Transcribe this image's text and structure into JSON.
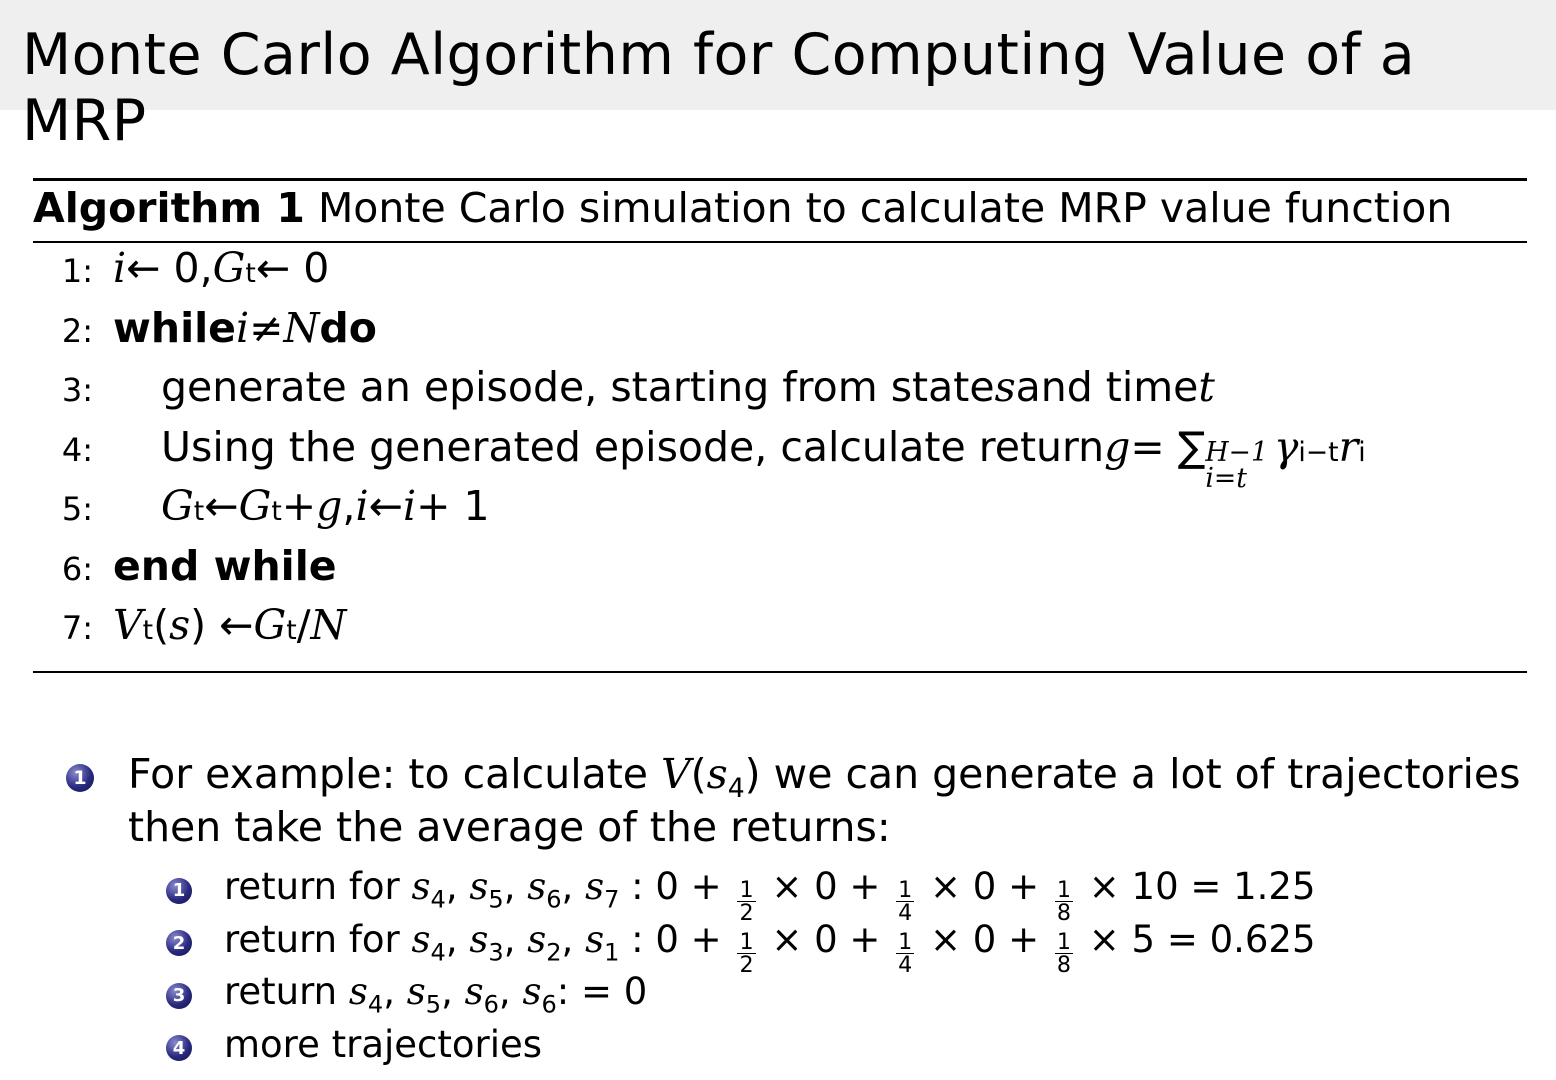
{
  "title": "Monte Carlo Algorithm for Computing Value of a MRP",
  "algorithm": {
    "label": "Algorithm 1",
    "caption": "Monte Carlo simulation to calculate MRP value function",
    "lines": [
      {
        "num": "1:",
        "indent": 0,
        "segs": [
          {
            "t": "i",
            "s": "i"
          },
          {
            "t": " ← 0, ",
            "s": "r"
          },
          {
            "t": "G",
            "s": "i"
          },
          {
            "t": "t",
            "s": "sub"
          },
          {
            "t": " ← 0",
            "s": "r"
          }
        ]
      },
      {
        "num": "2:",
        "indent": 0,
        "segs": [
          {
            "t": "while ",
            "s": "b"
          },
          {
            "t": "i",
            "s": "i"
          },
          {
            "t": " ≠ ",
            "s": "r"
          },
          {
            "t": "N",
            "s": "i"
          },
          {
            "t": " do",
            "s": "b"
          }
        ]
      },
      {
        "num": "3:",
        "indent": 1,
        "segs": [
          {
            "t": "generate an episode, starting from state ",
            "s": "r"
          },
          {
            "t": "s",
            "s": "i"
          },
          {
            "t": " and time ",
            "s": "r"
          },
          {
            "t": "t",
            "s": "i"
          }
        ]
      },
      {
        "num": "4:",
        "indent": 1,
        "segs": [
          {
            "t": "Using the generated episode, calculate return ",
            "s": "r"
          },
          {
            "t": "g",
            "s": "i"
          },
          {
            "t": " = ∑",
            "s": "r"
          },
          {
            "t": "lim",
            "s": "lim",
            "sup": "H−1",
            "sub": "i=t"
          },
          {
            "t": "γ",
            "s": "i"
          },
          {
            "t": "i−t",
            "s": "sup"
          },
          {
            "t": "r",
            "s": "i"
          },
          {
            "t": "i",
            "s": "sub"
          }
        ]
      },
      {
        "num": "5:",
        "indent": 1,
        "segs": [
          {
            "t": "G",
            "s": "i"
          },
          {
            "t": "t",
            "s": "sub"
          },
          {
            "t": " ← ",
            "s": "r"
          },
          {
            "t": "G",
            "s": "i"
          },
          {
            "t": "t",
            "s": "sub"
          },
          {
            "t": " + ",
            "s": "r"
          },
          {
            "t": "g",
            "s": "i"
          },
          {
            "t": ", ",
            "s": "r"
          },
          {
            "t": "i",
            "s": "i"
          },
          {
            "t": " ← ",
            "s": "r"
          },
          {
            "t": "i",
            "s": "i"
          },
          {
            "t": " + 1",
            "s": "r"
          }
        ]
      },
      {
        "num": "6:",
        "indent": 0,
        "segs": [
          {
            "t": "end while",
            "s": "b"
          }
        ]
      },
      {
        "num": "7:",
        "indent": 0,
        "segs": [
          {
            "t": "V",
            "s": "i"
          },
          {
            "t": "t",
            "s": "sub"
          },
          {
            "t": "(",
            "s": "r"
          },
          {
            "t": "s",
            "s": "i"
          },
          {
            "t": ") ← ",
            "s": "r"
          },
          {
            "t": "G",
            "s": "i"
          },
          {
            "t": "t",
            "s": "sub"
          },
          {
            "t": "/",
            "s": "r"
          },
          {
            "t": "N",
            "s": "i"
          }
        ]
      }
    ]
  },
  "example": {
    "marker": "1",
    "line1": [
      {
        "t": "For example: to calculate ",
        "s": "r"
      },
      {
        "t": "V",
        "s": "i"
      },
      {
        "t": "(",
        "s": "r"
      },
      {
        "t": "s",
        "s": "i"
      },
      {
        "t": "4",
        "s": "sub"
      },
      {
        "t": ") we can generate a lot of trajectories",
        "s": "r"
      }
    ],
    "line2": "then take the average of the returns:",
    "items": [
      {
        "marker": "1",
        "segs": [
          {
            "t": "return for ",
            "s": "r"
          },
          {
            "t": "s",
            "s": "i"
          },
          {
            "t": "4",
            "s": "sub"
          },
          {
            "t": ", ",
            "s": "r"
          },
          {
            "t": "s",
            "s": "i"
          },
          {
            "t": "5",
            "s": "sub"
          },
          {
            "t": ", ",
            "s": "r"
          },
          {
            "t": "s",
            "s": "i"
          },
          {
            "t": "6",
            "s": "sub"
          },
          {
            "t": ", ",
            "s": "r"
          },
          {
            "t": "s",
            "s": "i"
          },
          {
            "t": "7",
            "s": "sub"
          },
          {
            "t": " : 0 + ",
            "s": "r"
          },
          {
            "s": "frac",
            "num": "1",
            "den": "2"
          },
          {
            "t": " × 0 + ",
            "s": "r"
          },
          {
            "s": "frac",
            "num": "1",
            "den": "4"
          },
          {
            "t": " × 0 + ",
            "s": "r"
          },
          {
            "s": "frac",
            "num": "1",
            "den": "8"
          },
          {
            "t": " × 10 = 1.25",
            "s": "r"
          }
        ]
      },
      {
        "marker": "2",
        "segs": [
          {
            "t": "return for ",
            "s": "r"
          },
          {
            "t": "s",
            "s": "i"
          },
          {
            "t": "4",
            "s": "sub"
          },
          {
            "t": ", ",
            "s": "r"
          },
          {
            "t": "s",
            "s": "i"
          },
          {
            "t": "3",
            "s": "sub"
          },
          {
            "t": ", ",
            "s": "r"
          },
          {
            "t": "s",
            "s": "i"
          },
          {
            "t": "2",
            "s": "sub"
          },
          {
            "t": ", ",
            "s": "r"
          },
          {
            "t": "s",
            "s": "i"
          },
          {
            "t": "1",
            "s": "sub"
          },
          {
            "t": " : 0 + ",
            "s": "r"
          },
          {
            "s": "frac",
            "num": "1",
            "den": "2"
          },
          {
            "t": " × 0 + ",
            "s": "r"
          },
          {
            "s": "frac",
            "num": "1",
            "den": "4"
          },
          {
            "t": " × 0 + ",
            "s": "r"
          },
          {
            "s": "frac",
            "num": "1",
            "den": "8"
          },
          {
            "t": " × 5 = 0.625",
            "s": "r"
          }
        ]
      },
      {
        "marker": "3",
        "segs": [
          {
            "t": "return ",
            "s": "r"
          },
          {
            "t": "s",
            "s": "i"
          },
          {
            "t": "4",
            "s": "sub"
          },
          {
            "t": ", ",
            "s": "r"
          },
          {
            "t": "s",
            "s": "i"
          },
          {
            "t": "5",
            "s": "sub"
          },
          {
            "t": ", ",
            "s": "r"
          },
          {
            "t": "s",
            "s": "i"
          },
          {
            "t": "6",
            "s": "sub"
          },
          {
            "t": ", ",
            "s": "r"
          },
          {
            "t": "s",
            "s": "i"
          },
          {
            "t": "6",
            "s": "sub"
          },
          {
            "t": ": = 0",
            "s": "r"
          }
        ]
      },
      {
        "marker": "4",
        "segs": [
          {
            "t": "more trajectories",
            "s": "r"
          }
        ]
      }
    ]
  },
  "colors": {
    "title_bar": "#efefef",
    "bullet": "#2a2a80"
  }
}
